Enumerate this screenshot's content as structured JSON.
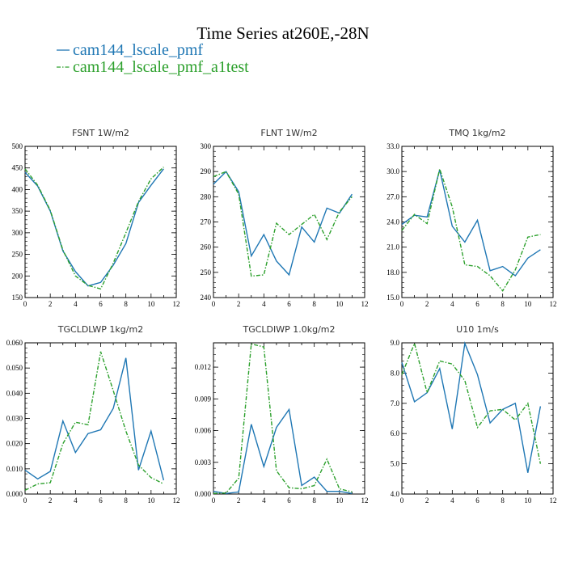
{
  "title": "Time Series at260E,-28N",
  "legend": [
    {
      "label": "cam144_lscale_pmf",
      "color": "#1f77b4",
      "dash": "solid"
    },
    {
      "label": "cam144_lscale_pmf_a1test",
      "color": "#2ca02c",
      "dash": "dashdot"
    }
  ],
  "chart_data": [
    {
      "type": "line",
      "title": "FSNT  1W/m2",
      "x": [
        0,
        1,
        2,
        3,
        4,
        5,
        6,
        7,
        8,
        9,
        10,
        11
      ],
      "xlim": [
        0,
        12
      ],
      "xticks": [
        "0",
        "2",
        "4",
        "6",
        "8",
        "10",
        "12"
      ],
      "ylim": [
        150,
        500
      ],
      "yticks": [
        "150",
        "200",
        "250",
        "300",
        "350",
        "400",
        "450",
        "500"
      ],
      "series": [
        {
          "name": "cam144_lscale_pmf",
          "values": [
            440,
            408,
            350,
            258,
            210,
            177,
            185,
            225,
            275,
            370,
            410,
            448
          ]
        },
        {
          "name": "cam144_lscale_pmf_a1test",
          "values": [
            448,
            410,
            352,
            260,
            200,
            178,
            170,
            230,
            300,
            372,
            425,
            452
          ]
        }
      ]
    },
    {
      "type": "line",
      "title": "FLNT  1W/m2",
      "x": [
        0,
        1,
        2,
        3,
        4,
        5,
        6,
        7,
        8,
        9,
        10,
        11
      ],
      "xlim": [
        0,
        12
      ],
      "xticks": [
        "0",
        "2",
        "4",
        "6",
        "8",
        "10",
        "12"
      ],
      "ylim": [
        240,
        300
      ],
      "yticks": [
        "240",
        "250",
        "260",
        "270",
        "280",
        "290",
        "300"
      ],
      "series": [
        {
          "name": "cam144_lscale_pmf",
          "values": [
            285,
            290,
            282,
            256.5,
            265,
            254.5,
            249,
            268,
            262,
            275.5,
            273.5,
            281
          ]
        },
        {
          "name": "cam144_lscale_pmf_a1test",
          "values": [
            288,
            290,
            281,
            248.5,
            249,
            269.5,
            265,
            269,
            273,
            263,
            274,
            280
          ]
        }
      ]
    },
    {
      "type": "line",
      "title": "TMQ  1kg/m2",
      "x": [
        0,
        1,
        2,
        3,
        4,
        5,
        6,
        7,
        8,
        9,
        10,
        11
      ],
      "xlim": [
        0,
        12
      ],
      "xticks": [
        "0",
        "2",
        "4",
        "6",
        "8",
        "10",
        "12"
      ],
      "ylim": [
        15,
        33
      ],
      "yticks": [
        "15.0",
        "18.0",
        "21.0",
        "24.0",
        "27.0",
        "30.0",
        "33.0"
      ],
      "series": [
        {
          "name": "cam144_lscale_pmf",
          "values": [
            23.7,
            24.8,
            24.6,
            30.2,
            23.5,
            21.6,
            24.2,
            18.2,
            18.7,
            17.6,
            19.7,
            20.7
          ]
        },
        {
          "name": "cam144_lscale_pmf_a1test",
          "values": [
            23.0,
            24.9,
            23.8,
            30.3,
            25.8,
            18.9,
            18.7,
            17.6,
            15.8,
            18.3,
            22.2,
            22.5
          ]
        }
      ]
    },
    {
      "type": "line",
      "title": "TGCLDLWP  1kg/m2",
      "x": [
        0,
        1,
        2,
        3,
        4,
        5,
        6,
        7,
        8,
        9,
        10,
        11
      ],
      "xlim": [
        0,
        12
      ],
      "xticks": [
        "0",
        "2",
        "4",
        "6",
        "8",
        "10",
        "12"
      ],
      "ylim": [
        0,
        0.06
      ],
      "yticks": [
        "0.000",
        "0.010",
        "0.020",
        "0.030",
        "0.040",
        "0.050",
        "0.060"
      ],
      "series": [
        {
          "name": "cam144_lscale_pmf",
          "values": [
            0.0095,
            0.006,
            0.009,
            0.029,
            0.0165,
            0.024,
            0.0255,
            0.034,
            0.054,
            0.0095,
            0.025,
            0.0055
          ]
        },
        {
          "name": "cam144_lscale_pmf_a1test",
          "values": [
            0.0015,
            0.004,
            0.0045,
            0.02,
            0.0285,
            0.0275,
            0.0565,
            0.041,
            0.025,
            0.0115,
            0.0065,
            0.004
          ]
        }
      ]
    },
    {
      "type": "line",
      "title": "TGCLDIWP  1.0kg/m2",
      "x": [
        0,
        1,
        2,
        3,
        4,
        5,
        6,
        7,
        8,
        9,
        10,
        11
      ],
      "xlim": [
        0,
        12
      ],
      "xticks": [
        "0",
        "2",
        "4",
        "6",
        "8",
        "10",
        "12"
      ],
      "ylim": [
        0,
        0.0143
      ],
      "yticks": [
        "0.000",
        "0.003",
        "0.006",
        "0.009",
        "0.012"
      ],
      "ytick_values": [
        0,
        0.003,
        0.006,
        0.009,
        0.012
      ],
      "series": [
        {
          "name": "cam144_lscale_pmf",
          "values": [
            0.00025,
            5e-05,
            0.0002,
            0.0066,
            0.0026,
            0.0063,
            0.008,
            0.0008,
            0.0016,
            0.00025,
            0.00025,
            5e-05
          ]
        },
        {
          "name": "cam144_lscale_pmf_a1test",
          "values": [
            5e-05,
            0.0001,
            0.0015,
            0.0142,
            0.0139,
            0.0022,
            0.0006,
            0.0005,
            0.0008,
            0.0033,
            0.0005,
            0.0002
          ]
        }
      ]
    },
    {
      "type": "line",
      "title": "U10  1m/s",
      "x": [
        0,
        1,
        2,
        3,
        4,
        5,
        6,
        7,
        8,
        9,
        10,
        11
      ],
      "xlim": [
        0,
        12
      ],
      "xticks": [
        "0",
        "2",
        "4",
        "6",
        "8",
        "10",
        "12"
      ],
      "ylim": [
        4,
        9
      ],
      "yticks": [
        "4.0",
        "5.0",
        "6.0",
        "7.0",
        "8.0",
        "9.0"
      ],
      "series": [
        {
          "name": "cam144_lscale_pmf",
          "values": [
            8.35,
            7.05,
            7.35,
            8.15,
            6.15,
            8.98,
            7.95,
            6.35,
            6.8,
            7.0,
            4.7,
            6.9
          ]
        },
        {
          "name": "cam144_lscale_pmf_a1test",
          "values": [
            7.95,
            8.98,
            7.35,
            8.4,
            8.3,
            7.75,
            6.2,
            6.75,
            6.8,
            6.45,
            7.0,
            5.0
          ]
        }
      ]
    }
  ]
}
